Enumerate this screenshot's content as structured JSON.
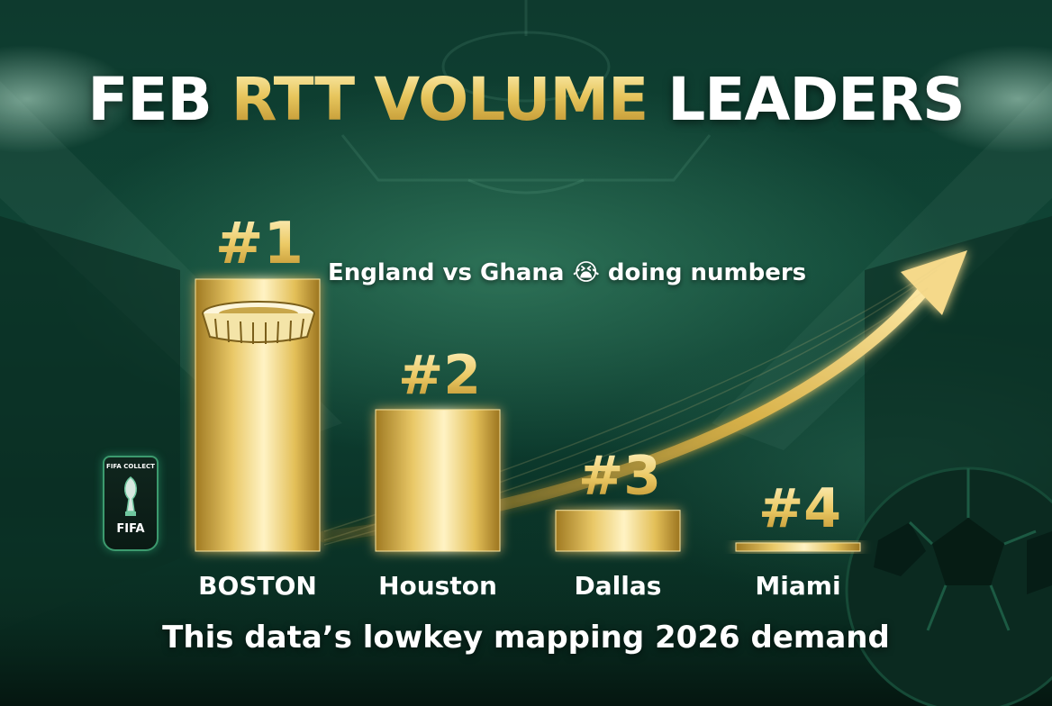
{
  "title": {
    "part1": "FEB ",
    "highlight": "RTT VOLUME",
    "part2": " LEADERS"
  },
  "annotation": "England vs Ghana 😭 doing numbers",
  "subtitle": "This data’s lowkey mapping 2026 demand",
  "badge": {
    "top": "FIFA COLLECT",
    "bottom": "FIFA"
  },
  "colors": {
    "gold_light": "#f8e6a0",
    "gold": "#d9b24a",
    "gold_dark": "#a07a22",
    "green_dark": "#0c3a2d",
    "text": "#ffffff"
  },
  "icons": [
    "stadium-icon",
    "trophy-icon",
    "soccer-ball-icon",
    "trend-arrow-icon"
  ],
  "chart_data": {
    "type": "bar",
    "categories": [
      "BOSTON",
      "Houston",
      "Dallas",
      "Miami"
    ],
    "ranks": [
      "#1",
      "#2",
      "#3",
      "#4"
    ],
    "values": [
      100,
      52,
      15,
      3
    ],
    "ylim": [
      0,
      100
    ],
    "grid": false,
    "legend": "none"
  }
}
